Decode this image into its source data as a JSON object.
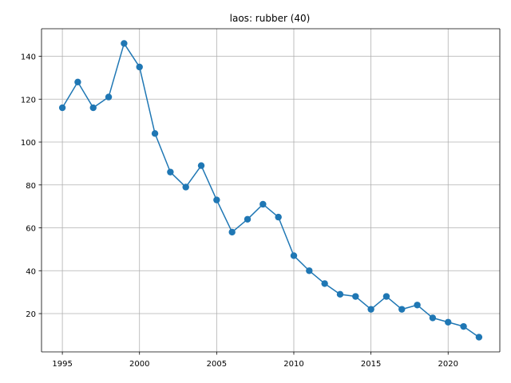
{
  "chart_data": {
    "type": "line",
    "title": "laos: rubber (40)",
    "xlabel": "",
    "ylabel": "",
    "x": [
      1995,
      1996,
      1997,
      1998,
      1999,
      2000,
      2001,
      2002,
      2003,
      2004,
      2005,
      2006,
      2007,
      2008,
      2009,
      2010,
      2011,
      2012,
      2013,
      2014,
      2015,
      2016,
      2017,
      2018,
      2019,
      2020,
      2021,
      2022
    ],
    "series": [
      {
        "values": [
          116,
          128,
          116,
          121,
          146,
          135,
          104,
          86,
          79,
          89,
          73,
          58,
          64,
          71,
          65,
          47,
          40,
          34,
          29,
          28,
          22,
          28,
          22,
          24,
          18,
          16,
          14,
          9
        ],
        "color": "#1f77b4"
      }
    ],
    "xlim": [
      1993.65,
      2023.35
    ],
    "ylim": [
      2.15,
      152.85
    ],
    "xticks": [
      1995,
      2000,
      2005,
      2010,
      2015,
      2020
    ],
    "yticks": [
      20,
      40,
      60,
      80,
      100,
      120,
      140
    ],
    "grid": true,
    "marker": "circle"
  }
}
